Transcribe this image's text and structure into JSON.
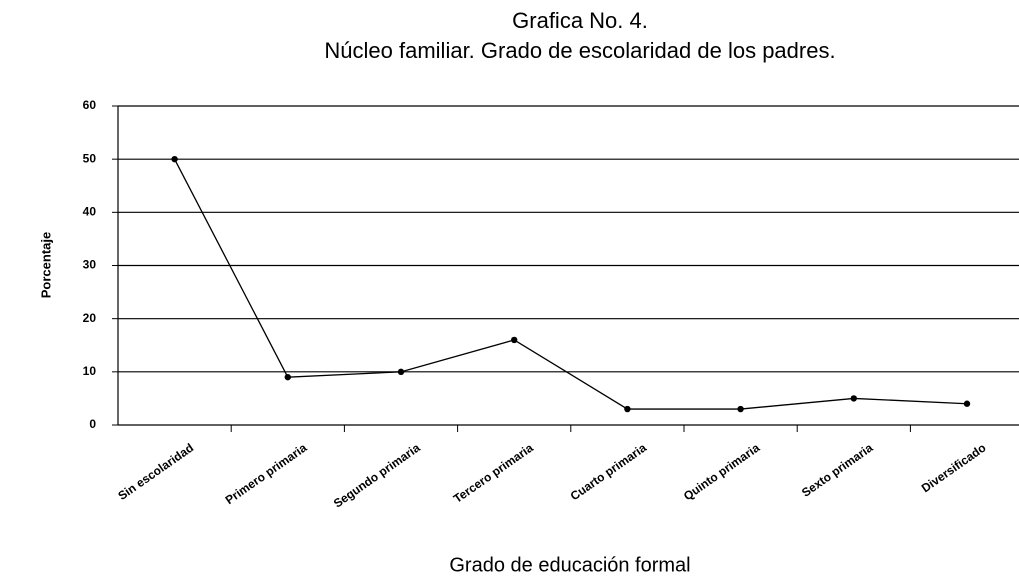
{
  "chart_data": {
    "type": "line",
    "title": "Grafica No. 4.",
    "subtitle": "Núcleo familiar. Grado de escolaridad de los padres.",
    "x_label": "Grado de educación formal",
    "y_label": "Porcentaje",
    "categories": [
      "Sin escolaridad",
      "Primero primaria",
      "Segundo primaria",
      "Tercero primaria",
      "Cuarto primaria",
      "Quinto primaria",
      "Sexto primaria",
      "Diversificado"
    ],
    "values": [
      50,
      9,
      10,
      16,
      3,
      3,
      5,
      4
    ],
    "color": "#000000",
    "ylim": [
      0,
      60
    ],
    "yticks": [
      0,
      10,
      20,
      30,
      40,
      50,
      60
    ],
    "grid": true
  }
}
